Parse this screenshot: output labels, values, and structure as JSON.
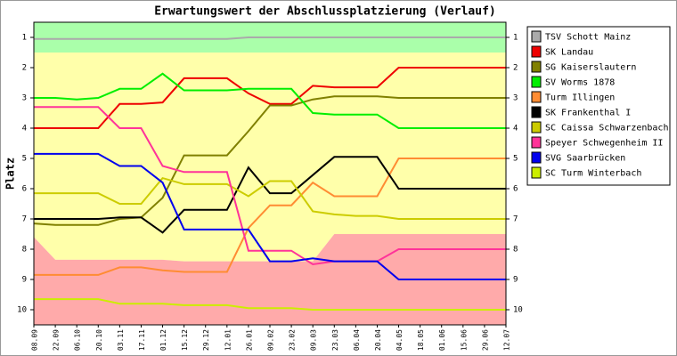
{
  "chart_data": {
    "type": "line",
    "title": "Erwartungswert der Abschlussplatzierung (Verlauf)",
    "y_label": "Platz",
    "categories": [
      "08.09",
      "22.09",
      "06.10",
      "20.10",
      "03.11",
      "17.11",
      "01.12",
      "15.12",
      "29.12",
      "12.01",
      "26.01",
      "09.02",
      "23.02",
      "09.03",
      "23.03",
      "06.04",
      "20.04",
      "04.05",
      "18.05",
      "01.06",
      "15.06",
      "29.06",
      "12.07"
    ],
    "ylim": [
      0.5,
      10.5
    ],
    "y_inverted": true,
    "yticks": [
      1,
      2,
      3,
      4,
      5,
      6,
      7,
      8,
      9,
      10
    ],
    "zones": {
      "top_limit": 1.5,
      "top_color": "#aaffaa",
      "middle_color": "#ffffaa",
      "bottom_color": "#ffaaaa",
      "bottom_limit": [
        7.6,
        8.35,
        8.35,
        8.35,
        8.35,
        8.35,
        8.35,
        8.4,
        8.4,
        8.4,
        8.4,
        8.4,
        8.4,
        8.4,
        7.5,
        7.5,
        7.5,
        7.5,
        7.5,
        7.5,
        7.5,
        7.5,
        7.5
      ]
    },
    "series": [
      {
        "name": "TSV Schott Mainz",
        "color": "#aaaaaa",
        "values": [
          1.05,
          1.05,
          1.05,
          1.05,
          1.05,
          1.05,
          1.05,
          1.05,
          1.05,
          1.05,
          1,
          1,
          1,
          1,
          1,
          1,
          1,
          1,
          1,
          1,
          1,
          1,
          1
        ]
      },
      {
        "name": "SK Landau",
        "color": "#ee0000",
        "values": [
          4,
          4,
          4,
          4,
          3.2,
          3.2,
          3.15,
          2.35,
          2.35,
          2.35,
          2.85,
          3.2,
          3.2,
          2.6,
          2.65,
          2.65,
          2.65,
          2,
          2,
          2,
          2,
          2,
          2
        ]
      },
      {
        "name": "SG Kaiserslautern",
        "color": "#808000",
        "values": [
          7.15,
          7.2,
          7.2,
          7.2,
          7,
          6.95,
          6.3,
          4.9,
          4.9,
          4.9,
          4.1,
          3.25,
          3.25,
          3.05,
          2.95,
          2.95,
          2.95,
          3,
          3,
          3,
          3,
          3,
          3
        ]
      },
      {
        "name": "SV Worms 1878",
        "color": "#00ee00",
        "values": [
          3,
          3,
          3.05,
          3,
          2.7,
          2.7,
          2.2,
          2.75,
          2.75,
          2.75,
          2.7,
          2.7,
          2.7,
          3.5,
          3.55,
          3.55,
          3.55,
          4,
          4,
          4,
          4,
          4,
          4
        ]
      },
      {
        "name": "Turm Illingen",
        "color": "#ff8c33",
        "values": [
          8.85,
          8.85,
          8.85,
          8.85,
          8.6,
          8.6,
          8.7,
          8.75,
          8.75,
          8.75,
          7.3,
          6.55,
          6.55,
          5.8,
          6.25,
          6.25,
          6.25,
          5,
          5,
          5,
          5,
          5,
          5
        ]
      },
      {
        "name": "SK Frankenthal I",
        "color": "#000000",
        "values": [
          7,
          7,
          7,
          7,
          6.95,
          6.95,
          7.45,
          6.7,
          6.7,
          6.7,
          5.3,
          6.15,
          6.15,
          5.55,
          4.95,
          4.95,
          4.95,
          6,
          6,
          6,
          6,
          6,
          6
        ]
      },
      {
        "name": "SC Caissa Schwarzenbach",
        "color": "#cccc00",
        "values": [
          6.15,
          6.15,
          6.15,
          6.15,
          6.5,
          6.5,
          5.65,
          5.85,
          5.85,
          5.85,
          6.25,
          5.75,
          5.75,
          6.75,
          6.85,
          6.9,
          6.9,
          7,
          7,
          7,
          7,
          7,
          7
        ]
      },
      {
        "name": "Speyer Schwegenheim II",
        "color": "#ff3399",
        "values": [
          3.3,
          3.3,
          3.3,
          3.3,
          4,
          4,
          5.25,
          5.45,
          5.45,
          5.45,
          8.05,
          8.05,
          8.05,
          8.5,
          8.4,
          8.4,
          8.4,
          8,
          8,
          8,
          8,
          8,
          8
        ]
      },
      {
        "name": "SVG Saarbrücken",
        "color": "#0000ee",
        "values": [
          4.85,
          4.85,
          4.85,
          4.85,
          5.25,
          5.25,
          5.8,
          7.35,
          7.35,
          7.35,
          7.35,
          8.4,
          8.4,
          8.3,
          8.4,
          8.4,
          8.4,
          9,
          9,
          9,
          9,
          9,
          9
        ]
      },
      {
        "name": "SC Turm Winterbach",
        "color": "#ccee00",
        "values": [
          9.65,
          9.65,
          9.65,
          9.65,
          9.8,
          9.8,
          9.8,
          9.85,
          9.85,
          9.85,
          9.95,
          9.95,
          9.95,
          10,
          10,
          10,
          10,
          10,
          10,
          10,
          10,
          10,
          10
        ]
      }
    ]
  }
}
